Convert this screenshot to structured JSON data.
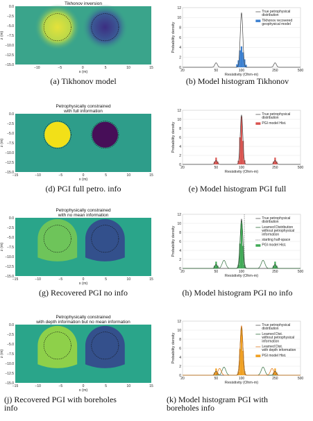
{
  "figure": {
    "rows": [
      {
        "model": {
          "title_lines": [
            "Tikhonov inversion"
          ],
          "caption": "(a) Tikhonov model",
          "xlabel": "x (m)",
          "ylabel": "z (m)",
          "xticks": [
            "−10",
            "−5",
            "0",
            "5",
            "10",
            "15"
          ],
          "yticks": [
            "0.0",
            "−2.5",
            "−5.0",
            "−7.5",
            "−10.0",
            "−12.5",
            "−15.0"
          ],
          "style": "smooth",
          "bg": "#3aa48b",
          "left_color": "#e5e23a",
          "right_color": "#3c2e82"
        },
        "hist": {
          "caption": "(b) Model histogram Tikhonov",
          "ylabel": "Probability density",
          "xlabel": "Resistivity (Ohm-m)",
          "xticks": [
            "20",
            "50",
            "100",
            "250",
            "500"
          ],
          "yticks": [
            "0",
            "2",
            "4",
            "6",
            "8",
            "10",
            "12"
          ],
          "legend": [
            {
              "label_lines": [
                "True petrophysical",
                "distribution"
              ],
              "kind": "line",
              "color": "#555555"
            },
            {
              "label_lines": [
                "Tikhonov recovered",
                "geophysical model"
              ],
              "kind": "patch",
              "color": "#3a7fd0"
            }
          ],
          "bar_color": "#3a7fd0",
          "bars": [
            0.6,
            1.4,
            3.4,
            4.2,
            3.0,
            1.6,
            0.5
          ],
          "overlay": []
        }
      },
      {
        "model": {
          "title_lines": [
            "Petrophysically constrained",
            "with full information"
          ],
          "caption": "(d) PGI full petro. info",
          "xlabel": "x (m)",
          "ylabel": "z (m)",
          "xticks": [
            "−15",
            "−10",
            "−5",
            "0",
            "5",
            "10",
            "15"
          ],
          "yticks": [
            "0.0",
            "−2.5",
            "−5.0",
            "−7.5",
            "−10.0",
            "−12.5",
            "−15.0"
          ],
          "style": "sharp",
          "bg": "#2e9d8a",
          "left_color": "#f2e018",
          "right_color": "#470e58"
        },
        "hist": {
          "caption": "(e) Model histogram PGI full",
          "ylabel": "Probability density",
          "xlabel": "Resistivity (Ohm-m)",
          "xticks": [
            "20",
            "50",
            "100",
            "250",
            "500"
          ],
          "yticks": [
            "0",
            "2",
            "4",
            "6",
            "8",
            "10",
            "12"
          ],
          "legend": [
            {
              "label_lines": [
                "True petrophysical",
                "distribution"
              ],
              "kind": "line",
              "color": "#555555"
            },
            {
              "label_lines": [
                "PGI model Hist."
              ],
              "kind": "patch",
              "color": "#d9534f"
            }
          ],
          "bar_color": "#d9534f",
          "bars": [
            0.8,
            6.0,
            10.6,
            5.2,
            0.9
          ],
          "overlay": []
        }
      },
      {
        "model": {
          "title_lines": [
            "Petrophysically constrained",
            "with no mean information"
          ],
          "caption": "(g) Recovered PGI no info",
          "xlabel": "x (m)",
          "ylabel": "z (m)",
          "xticks": [
            "−15",
            "−10",
            "−5",
            "0",
            "5",
            "10",
            "15"
          ],
          "yticks": [
            "0.0",
            "−2.5",
            "−5.0",
            "−7.5",
            "−10.0",
            "−12.5",
            "−15.0"
          ],
          "style": "dome",
          "bg": "#2aa58a",
          "left_color": "#6ec45a",
          "right_color": "#33508c"
        },
        "hist": {
          "caption": "(h) Model histogram PGI no info",
          "ylabel": "Probability density",
          "xlabel": "Resistivity (Ohm-m)",
          "xticks": [
            "20",
            "50",
            "100",
            "250",
            "500"
          ],
          "yticks": [
            "0",
            "2",
            "4",
            "6",
            "8",
            "10",
            "12"
          ],
          "legend": [
            {
              "label_lines": [
                "True petrophysical",
                "distribution"
              ],
              "kind": "line",
              "color": "#555555"
            },
            {
              "label_lines": [
                "Learned Distribution",
                "without petrophysical",
                "information"
              ],
              "kind": "line",
              "color": "#2e6b3a"
            },
            {
              "label_lines": [
                "starting half-space"
              ],
              "kind": "dash",
              "color": "#555555"
            },
            {
              "label_lines": [
                "PGI model Hist."
              ],
              "kind": "patch",
              "color": "#3faa55"
            }
          ],
          "bar_color": "#3faa55",
          "bars": [
            0.8,
            5.5,
            10.0,
            5.0,
            0.8
          ],
          "overlay": []
        }
      },
      {
        "model": {
          "title_lines": [
            "Petrophysically constrained",
            "with depth information but no mean information"
          ],
          "caption_lines": [
            "(j) Recovered PGI with boreholes",
            "info"
          ],
          "xlabel": "x (m)",
          "ylabel": "z (m)",
          "xticks": [
            "−15",
            "−10",
            "−5",
            "0",
            "5",
            "10",
            "15"
          ],
          "yticks": [
            "0.0",
            "−2.5",
            "−5.0",
            "−7.5",
            "−10.0",
            "−12.5",
            "−15.0"
          ],
          "style": "dome",
          "bg": "#2aa58a",
          "left_color": "#8ed04a",
          "right_color": "#34508c"
        },
        "hist": {
          "caption_lines": [
            "(k)  Model  histogram  PGI  with",
            "boreholes info"
          ],
          "ylabel": "Probability density",
          "xlabel": "Resistivity (Ohm-m)",
          "xticks": [
            "20",
            "50",
            "100",
            "250",
            "500"
          ],
          "yticks": [
            "0",
            "2",
            "4",
            "6",
            "8",
            "10",
            "12"
          ],
          "legend": [
            {
              "label_lines": [
                "True petrophysical",
                "distribution"
              ],
              "kind": "line",
              "color": "#555555"
            },
            {
              "label_lines": [
                "Learned Dist.",
                "without petrophysical",
                "information"
              ],
              "kind": "line",
              "color": "#2e6b3a"
            },
            {
              "label_lines": [
                "Learned Dist.",
                "with depth information"
              ],
              "kind": "line",
              "color": "#e07b20"
            },
            {
              "label_lines": [
                "PGI model Hist."
              ],
              "kind": "patch",
              "color": "#f0a020"
            }
          ],
          "bar_color": "#f0a020",
          "bars": [
            0.8,
            5.8,
            10.4,
            5.4,
            0.9
          ],
          "overlay": []
        }
      }
    ]
  }
}
